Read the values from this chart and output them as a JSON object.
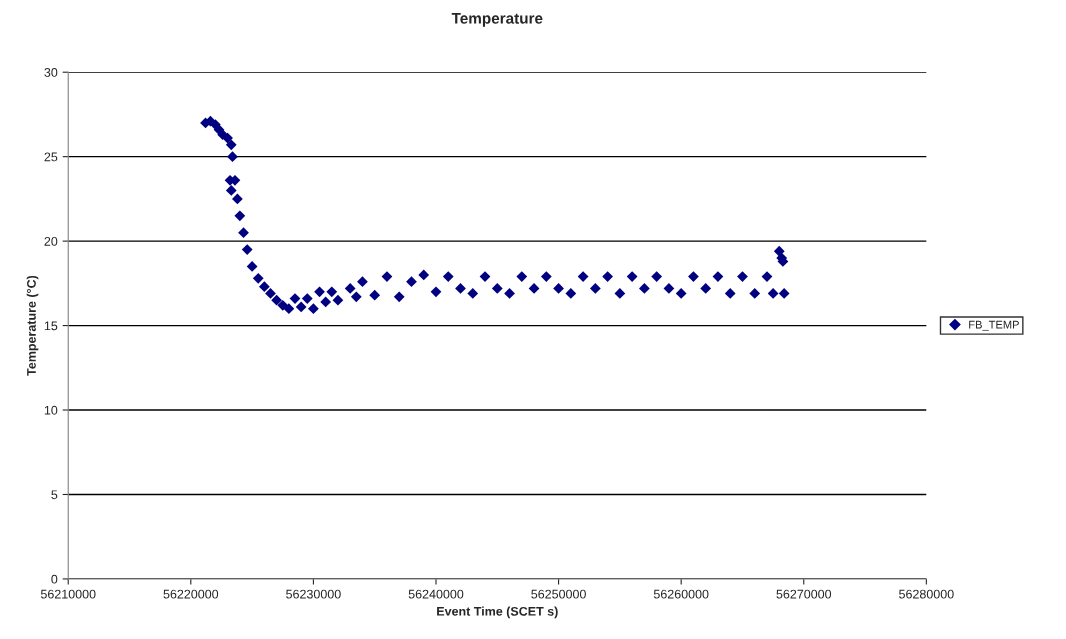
{
  "chart_data": {
    "type": "scatter",
    "title": "Temperature",
    "xlabel": "Event Time (SCET s)",
    "ylabel": "Temperature (°C)",
    "x": [
      56221200,
      56221600,
      56222000,
      56222300,
      56222600,
      56223000,
      56223300,
      56223400,
      56223200,
      56223300,
      56223600,
      56223800,
      56224000,
      56224300,
      56224600,
      56225000,
      56225500,
      56226000,
      56226500,
      56227000,
      56227500,
      56228000,
      56228500,
      56229000,
      56229500,
      56230000,
      56230500,
      56231000,
      56231500,
      56232000,
      56233000,
      56233500,
      56234000,
      56235000,
      56236000,
      56237000,
      56238000,
      56239000,
      56240000,
      56241000,
      56242000,
      56243000,
      56244000,
      56245000,
      56246000,
      56247000,
      56248000,
      56249000,
      56250000,
      56251000,
      56252000,
      56253000,
      56254000,
      56255000,
      56256000,
      56257000,
      56258000,
      56259000,
      56260000,
      56261000,
      56262000,
      56263000,
      56264000,
      56265000,
      56266000,
      56267000,
      56267500,
      56268000,
      56268200,
      56268300,
      56268400
    ],
    "series": [
      {
        "name": "FB_TEMP",
        "color": "#000080",
        "values": [
          27.0,
          27.1,
          26.9,
          26.6,
          26.3,
          26.1,
          25.7,
          25.0,
          23.6,
          23.0,
          23.6,
          22.5,
          21.5,
          20.5,
          19.5,
          18.5,
          17.8,
          17.3,
          16.9,
          16.5,
          16.2,
          16.0,
          16.6,
          16.1,
          16.6,
          16.0,
          17.0,
          16.4,
          17.0,
          16.5,
          17.2,
          16.7,
          17.6,
          16.8,
          17.9,
          16.7,
          17.6,
          18.0,
          17.0,
          17.9,
          17.2,
          16.9,
          17.9,
          17.2,
          16.9,
          17.9,
          17.2,
          17.9,
          17.2,
          16.9,
          17.9,
          17.2,
          17.9,
          16.9,
          17.9,
          17.2,
          17.9,
          17.2,
          16.9,
          17.9,
          17.2,
          17.9,
          16.9,
          17.9,
          16.9,
          17.9,
          16.9,
          19.4,
          19.0,
          18.8,
          16.9
        ]
      }
    ],
    "xlim": [
      56210000,
      56280000
    ],
    "xticks": [
      56210000,
      56220000,
      56230000,
      56240000,
      56250000,
      56260000,
      56270000,
      56280000
    ],
    "ylim": [
      0,
      30
    ],
    "yticks": [
      0,
      5,
      10,
      15,
      20,
      25,
      30
    ],
    "grid": "y",
    "legend": "right",
    "marker": "diamond"
  }
}
